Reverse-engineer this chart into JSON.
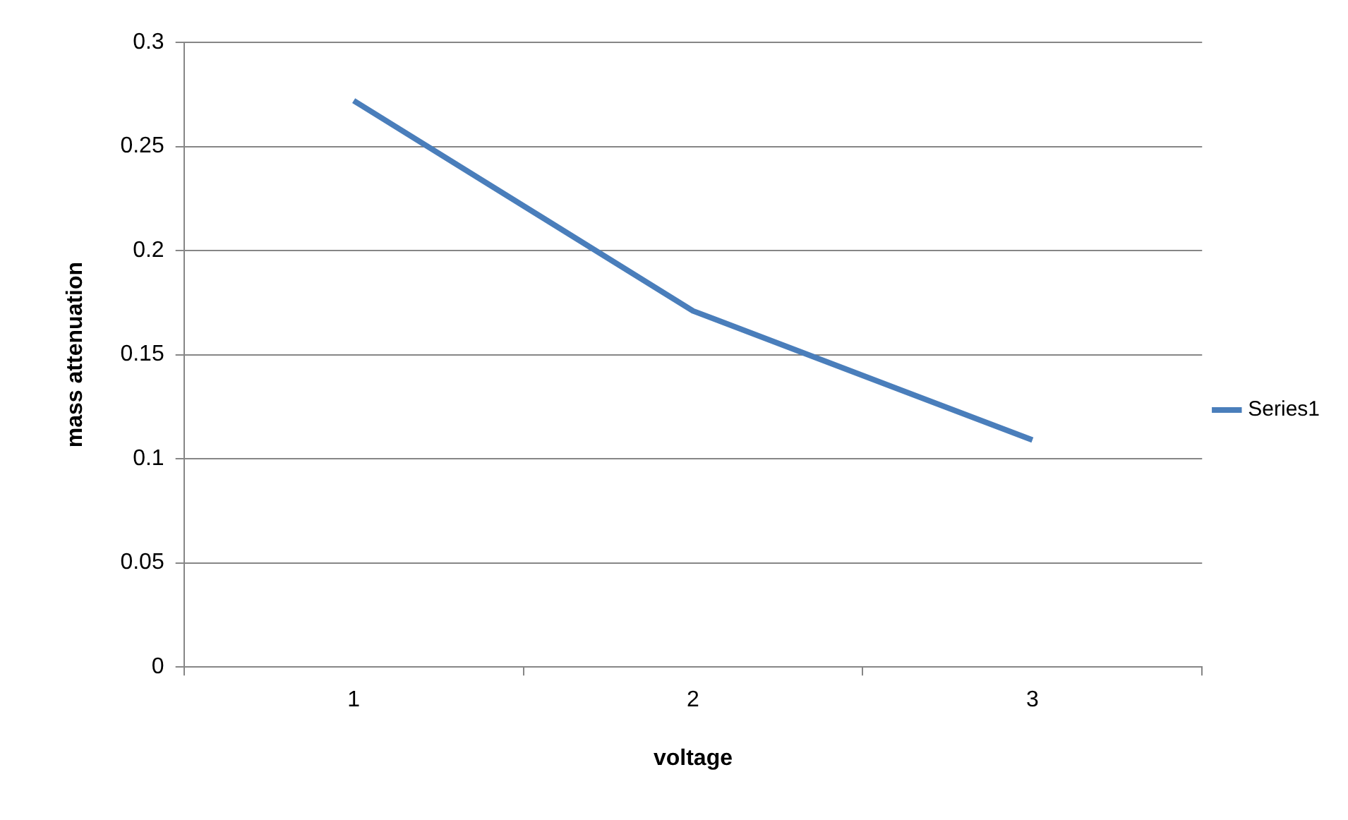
{
  "chart_data": {
    "type": "line",
    "xlabel": "voltage",
    "ylabel": "mass attenuation",
    "categories": [
      "1",
      "2",
      "3"
    ],
    "series": [
      {
        "name": "Series1",
        "color": "#4a7ebb",
        "values": [
          0.272,
          0.171,
          0.109
        ]
      }
    ],
    "ylim": [
      0,
      0.3
    ],
    "yticks": [
      0,
      0.05,
      0.1,
      0.15,
      0.2,
      0.25,
      0.3
    ],
    "grid": "y",
    "legend": "right",
    "marker": "none",
    "line_style": "solid"
  }
}
